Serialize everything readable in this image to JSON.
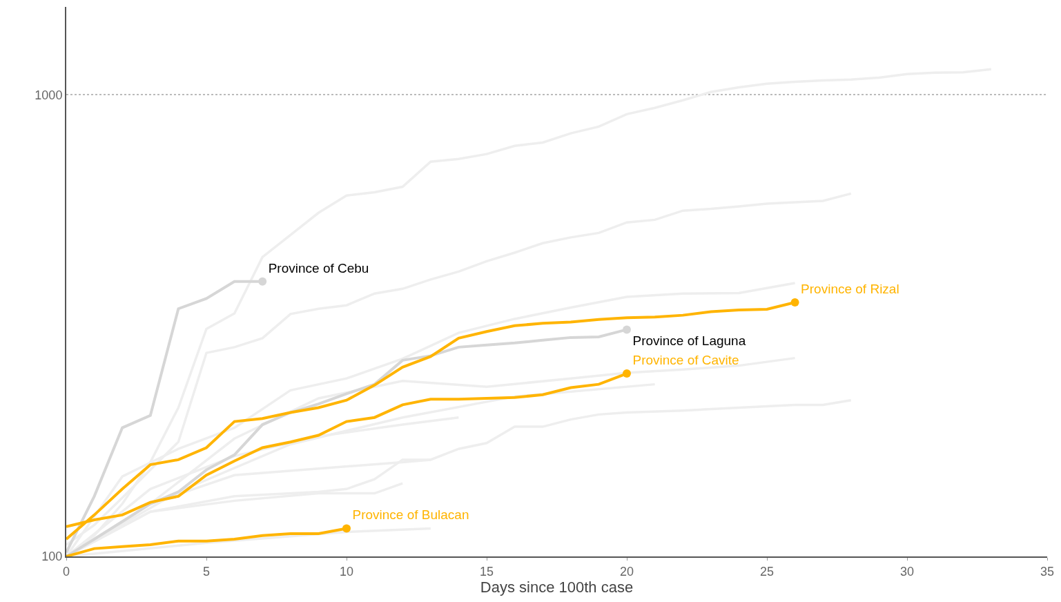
{
  "chart_data": {
    "type": "line",
    "xlabel": "Days since 100th case",
    "log": "y",
    "xlim": [
      0,
      35
    ],
    "xticks": [
      0,
      5,
      10,
      15,
      20,
      25,
      30,
      35
    ],
    "ylim": [
      100,
      1550
    ],
    "yticks": [
      100,
      1000
    ],
    "grid": "y",
    "legend": false,
    "line_style": "solid",
    "series": [
      {
        "color": "#eeeeee",
        "x": [
          0,
          1,
          2,
          3,
          4,
          5,
          6,
          7,
          8,
          9,
          10,
          11,
          12,
          13,
          14,
          15,
          16,
          17,
          18,
          19,
          20,
          21,
          22,
          23,
          24,
          25,
          26,
          27,
          28,
          29,
          30,
          31,
          32,
          33
        ],
        "values": [
          100,
          111,
          130,
          160,
          210,
          311,
          336,
          445,
          497,
          555,
          605,
          615,
          632,
          716,
          726,
          744,
          775,
          788,
          825,
          853,
          908,
          937,
          973,
          1014,
          1038,
          1057,
          1067,
          1074,
          1079,
          1089,
          1109,
          1117,
          1119,
          1136
        ]
      },
      {
        "color": "#eeeeee",
        "x": [
          0,
          1,
          2,
          3,
          4,
          5,
          6,
          7,
          8,
          9,
          10,
          11,
          12,
          13,
          14,
          15,
          16,
          17,
          18,
          19,
          20,
          21,
          22,
          23,
          24,
          25,
          26,
          27,
          28
        ],
        "values": [
          106,
          117,
          134,
          154,
          177,
          276,
          284,
          297,
          335,
          344,
          350,
          371,
          380,
          398,
          414,
          436,
          455,
          477,
          491,
          502,
          529,
          536,
          561,
          566,
          573,
          581,
          585,
          589,
          611
        ]
      },
      {
        "color": "#eeeeee",
        "x": [
          0,
          2,
          4,
          6,
          8,
          10,
          12,
          14,
          16,
          18,
          20,
          22,
          24,
          26
        ],
        "values": [
          100,
          149,
          171,
          190,
          229,
          243,
          268,
          305,
          327,
          346,
          365,
          371,
          372,
          391
        ]
      },
      {
        "color": "#eeeeee",
        "x": [
          0,
          3,
          6,
          9,
          10,
          11,
          12,
          13,
          14,
          15,
          16,
          17,
          18,
          19,
          20,
          22,
          24,
          26,
          27,
          28
        ],
        "values": [
          100,
          125,
          135,
          138,
          140,
          147,
          162,
          162,
          171,
          176,
          191,
          191,
          198,
          203,
          205,
          207,
          210,
          213,
          213,
          218
        ]
      },
      {
        "color": "#eeeeee",
        "x": [
          0,
          3,
          6,
          9,
          12,
          15,
          18,
          20,
          22,
          24,
          26
        ],
        "values": [
          100,
          130,
          180,
          220,
          240,
          233,
          243,
          250,
          254,
          259,
          269
        ]
      },
      {
        "color": "#eeeeee",
        "x": [
          0,
          4,
          8,
          12,
          16,
          21
        ],
        "values": [
          100,
          138,
          175,
          200,
          222,
          236
        ]
      },
      {
        "color": "#eeeeee",
        "x": [
          0,
          3,
          6,
          9,
          12,
          14
        ],
        "values": [
          100,
          140,
          165,
          182,
          193,
          200
        ]
      },
      {
        "color": "#eeeeee",
        "x": [
          0,
          3,
          6,
          9,
          12,
          13
        ],
        "values": [
          100,
          130,
          150,
          155,
          160,
          162
        ]
      },
      {
        "color": "#eeeeee",
        "x": [
          0,
          3,
          6,
          9,
          11,
          12
        ],
        "values": [
          100,
          125,
          132,
          137,
          137,
          144
        ]
      },
      {
        "color": "#eeeeee",
        "x": [
          0,
          5,
          10,
          13
        ],
        "values": [
          100,
          107,
          113,
          115
        ]
      },
      {
        "name": "Province of Cebu",
        "color": "#d6d6d6",
        "x": [
          0,
          1,
          2,
          3,
          4,
          5,
          6,
          7
        ],
        "values": [
          102,
          135,
          190,
          202,
          344,
          362,
          394,
          394
        ]
      },
      {
        "name": "Province of Laguna",
        "color": "#d6d6d6",
        "x": [
          0,
          1,
          2,
          3,
          4,
          5,
          6,
          7,
          8,
          9,
          10,
          11,
          12,
          13,
          14,
          15,
          16,
          17,
          18,
          19,
          20
        ],
        "values": [
          100,
          109,
          119,
          130,
          138,
          154,
          166,
          193,
          205,
          214,
          225,
          236,
          266,
          272,
          284,
          287,
          290,
          294,
          298,
          299,
          310
        ]
      },
      {
        "name": "Province of Bulacan",
        "color": "#ffb400",
        "x": [
          0,
          1,
          2,
          3,
          4,
          5,
          6,
          7,
          8,
          9,
          10
        ],
        "values": [
          100,
          104,
          105,
          106,
          108,
          108,
          109,
          111,
          112,
          112,
          115
        ]
      },
      {
        "name": "Province of Cavite",
        "color": "#ffb400",
        "x": [
          0,
          1,
          2,
          3,
          4,
          5,
          6,
          7,
          8,
          9,
          10,
          11,
          12,
          13,
          14,
          15,
          16,
          17,
          18,
          19,
          20
        ],
        "values": [
          116,
          120,
          123,
          131,
          135,
          150,
          161,
          172,
          177,
          183,
          196,
          200,
          213,
          219,
          219,
          220,
          221,
          224,
          232,
          236,
          249
        ]
      },
      {
        "name": "Province of Rizal",
        "color": "#ffb400",
        "x": [
          0,
          1,
          2,
          3,
          4,
          5,
          6,
          7,
          8,
          9,
          10,
          11,
          12,
          13,
          14,
          15,
          16,
          17,
          18,
          19,
          20,
          21,
          22,
          23,
          24,
          25,
          26
        ],
        "values": [
          109,
          123,
          140,
          158,
          162,
          172,
          196,
          199,
          205,
          210,
          218,
          235,
          257,
          271,
          297,
          307,
          316,
          320,
          322,
          326,
          329,
          330,
          333,
          339,
          342,
          343,
          355
        ]
      }
    ]
  }
}
